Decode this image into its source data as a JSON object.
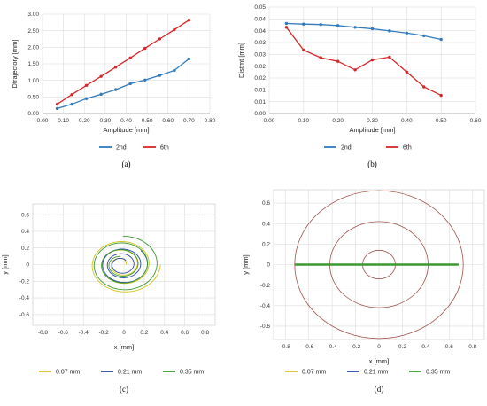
{
  "chart_data": [
    {
      "type": "line",
      "caption": "(a)",
      "xlabel": "Amplitude [mm]",
      "ylabel": "Dtrajectory [mm]",
      "xlim": [
        0,
        0.8
      ],
      "ylim": [
        0,
        3.0
      ],
      "xticks": [
        "0.00",
        "0.10",
        "0.20",
        "0.30",
        "0.40",
        "0.50",
        "0.60",
        "0.70",
        "0.80"
      ],
      "yticks": [
        "0.00",
        "0.50",
        "1.00",
        "1.50",
        "2.00",
        "2.50",
        "3.00"
      ],
      "grid": true,
      "legend_position": "bottom",
      "series": [
        {
          "name": "2nd",
          "color": "#2e7bbf",
          "x": [
            0.07,
            0.14,
            0.21,
            0.28,
            0.35,
            0.42,
            0.49,
            0.56,
            0.63,
            0.7
          ],
          "y": [
            0.15,
            0.28,
            0.45,
            0.58,
            0.72,
            0.9,
            1.01,
            1.15,
            1.3,
            1.65
          ]
        },
        {
          "name": "6th",
          "color": "#d62728",
          "x": [
            0.07,
            0.14,
            0.21,
            0.28,
            0.35,
            0.42,
            0.49,
            0.56,
            0.63,
            0.7
          ],
          "y": [
            0.28,
            0.57,
            0.85,
            1.12,
            1.4,
            1.68,
            1.97,
            2.25,
            2.53,
            2.82
          ]
        }
      ]
    },
    {
      "type": "line",
      "caption": "(b)",
      "xlabel": "Amplitude [mm]",
      "ylabel": "Distmt [mm]",
      "xlim": [
        0,
        0.6
      ],
      "ylim": [
        0,
        0.05
      ],
      "xticks": [
        "0.00",
        "0.10",
        "0.20",
        "0.30",
        "0.40",
        "0.50",
        "0.60"
      ],
      "yticks": [
        "0.00",
        "0.01",
        "0.01",
        "0.02",
        "0.02",
        "0.03",
        "0.03",
        "0.04",
        "0.04",
        "0.05"
      ],
      "grid": true,
      "legend_position": "bottom",
      "series": [
        {
          "name": "2nd",
          "color": "#2e7bbf",
          "x": [
            0.05,
            0.1,
            0.15,
            0.2,
            0.25,
            0.3,
            0.35,
            0.4,
            0.45,
            0.5
          ],
          "y": [
            0.0423,
            0.042,
            0.0418,
            0.0413,
            0.0405,
            0.0398,
            0.0388,
            0.0378,
            0.0365,
            0.0348
          ]
        },
        {
          "name": "6th",
          "color": "#d62728",
          "x": [
            0.05,
            0.1,
            0.15,
            0.2,
            0.25,
            0.3,
            0.35,
            0.4,
            0.45,
            0.5
          ],
          "y": [
            0.0405,
            0.0298,
            0.0262,
            0.0245,
            0.0205,
            0.0252,
            0.0265,
            0.0195,
            0.0125,
            0.0085
          ]
        }
      ]
    },
    {
      "type": "line",
      "caption": "(c)",
      "xlabel": "x [mm]",
      "ylabel": "y [mm]",
      "xlim": [
        -0.9,
        0.9
      ],
      "ylim": [
        -0.73,
        0.73
      ],
      "xticks": [
        "-0.8",
        "-0.6",
        "-0.4",
        "-0.2",
        "0",
        "0.2",
        "0.4",
        "0.6",
        "0.8"
      ],
      "yticks": [
        "-0.6",
        "-0.4",
        "-0.2",
        "0",
        "0.2",
        "0.4",
        "0.6"
      ],
      "grid": true,
      "legend_position": "bottom",
      "series": [
        {
          "name": "0.07 mm",
          "color": "#d4c21c",
          "shape": "spiral",
          "r_min": 0.05,
          "r_max": 0.36
        },
        {
          "name": "0.21 mm",
          "color": "#2846a0",
          "shape": "spiral",
          "r_min": 0.07,
          "r_max": 0.24
        },
        {
          "name": "0.35 mm",
          "color": "#3a9a2f",
          "shape": "spiral",
          "r_min": 0.1,
          "r_max": 0.35
        }
      ]
    },
    {
      "type": "line",
      "caption": "(d)",
      "xlabel": "x [mm]",
      "ylabel": "y [mm]",
      "xlim": [
        -0.9,
        0.9
      ],
      "ylim": [
        -0.73,
        0.73
      ],
      "xticks": [
        "-0.8",
        "-0.6",
        "-0.4",
        "-0.2",
        "0",
        "0.2",
        "0.4",
        "0.6",
        "0.8"
      ],
      "yticks": [
        "-0.6",
        "-0.4",
        "-0.2",
        "0",
        "0.2",
        "0.4",
        "0.6"
      ],
      "grid": true,
      "legend_position": "bottom",
      "circles": [
        {
          "r": 0.14,
          "color": "#a0524a"
        },
        {
          "r": 0.42,
          "color": "#a0524a"
        },
        {
          "r": 0.72,
          "color": "#a0524a"
        }
      ],
      "series": [
        {
          "name": "0.07 mm",
          "color": "#d4c21c",
          "shape": "segment",
          "x": [
            -0.06,
            0.06
          ],
          "y": [
            0,
            0
          ]
        },
        {
          "name": "0.21 mm",
          "color": "#2846a0",
          "shape": "segment",
          "x": [
            -0.2,
            0.2
          ],
          "y": [
            0,
            0
          ]
        },
        {
          "name": "0.35 mm",
          "color": "#3a9a2f",
          "shape": "segment",
          "x": [
            -0.72,
            0.68
          ],
          "y": [
            0,
            0
          ]
        }
      ]
    }
  ]
}
